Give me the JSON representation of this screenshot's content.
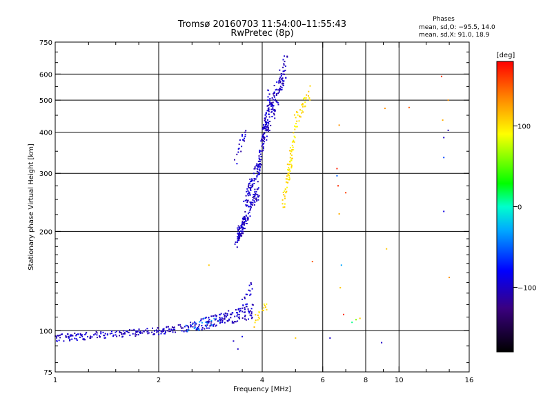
{
  "chart_data": {
    "type": "scatter",
    "title": "Tromsø 20160703 11:54:00–11:55:43",
    "subtitle": "RwPretec (8p)",
    "xlabel": "Frequency [MHz]",
    "ylabel": "Stationary phase Virtual Height [km]",
    "xscale": "log2",
    "yscale": "log",
    "xlim": [
      1,
      16
    ],
    "ylim": [
      75,
      750
    ],
    "x_ticks": [
      1,
      2,
      4,
      6,
      8,
      10,
      16
    ],
    "x_tick_labels": [
      "1",
      "2",
      "4",
      "6",
      "8",
      "10",
      "16"
    ],
    "x_minor_ticks": [
      1.25,
      1.5,
      1.75,
      2.5,
      3,
      3.5,
      5,
      7,
      9,
      12,
      14
    ],
    "y_ticks": [
      75,
      100,
      200,
      300,
      400,
      500,
      600,
      750
    ],
    "y_tick_labels": [
      "75",
      "100",
      "200",
      "300",
      "400",
      "500",
      "600",
      "750"
    ],
    "y_minor_ticks": [
      80,
      90,
      110,
      120,
      130,
      140,
      150,
      160,
      170,
      180,
      190,
      225,
      250,
      275,
      350,
      450,
      550,
      650,
      700
    ],
    "grid": true,
    "phase_stats": {
      "heading": "Phases",
      "line_o": "mean, sd,O: −95.5, 14.0",
      "line_x": "mean, sd,X:  91.0, 18.9"
    },
    "colorbar": {
      "label": "[deg]",
      "range": [
        -180,
        180
      ],
      "ticks": [
        100,
        0,
        -100
      ],
      "tick_labels": [
        "100",
        "0",
        "−100"
      ]
    },
    "series": [
      {
        "name": "E/low trace",
        "phase": -100,
        "segments": [
          {
            "x0": 1.0,
            "x1": 2.05,
            "y0": 95,
            "y1": 100,
            "n": 150,
            "jitter": 0.025
          },
          {
            "x0": 2.05,
            "x1": 2.6,
            "y0": 99,
            "y1": 104,
            "n": 55,
            "jitter": 0.03
          },
          {
            "x0": 2.6,
            "x1": 3.2,
            "y0": 104,
            "y1": 110,
            "n": 60,
            "jitter": 0.04
          },
          {
            "x0": 3.0,
            "x1": 3.8,
            "y0": 108,
            "y1": 115,
            "n": 70,
            "jitter": 0.05
          },
          {
            "x0": 3.4,
            "x1": 3.75,
            "y0": 110,
            "y1": 140,
            "n": 25,
            "jitter": 0.06
          }
        ]
      },
      {
        "name": "E/low cyan points",
        "phase": -40,
        "segments": [
          {
            "x0": 2.4,
            "x1": 3.0,
            "y0": 100,
            "y1": 110,
            "n": 20,
            "jitter": 0.04
          }
        ]
      },
      {
        "name": "O-mode F trace",
        "phase": -100,
        "segments": [
          {
            "x0": 3.35,
            "x1": 3.55,
            "y0": 185,
            "y1": 215,
            "n": 45,
            "jitter": 0.04
          },
          {
            "x0": 3.4,
            "x1": 3.9,
            "y0": 195,
            "y1": 265,
            "n": 90,
            "jitter": 0.05
          },
          {
            "x0": 3.55,
            "x1": 3.95,
            "y0": 240,
            "y1": 330,
            "n": 70,
            "jitter": 0.05
          },
          {
            "x0": 3.35,
            "x1": 3.6,
            "y0": 330,
            "y1": 420,
            "n": 20,
            "jitter": 0.05
          },
          {
            "x0": 3.9,
            "x1": 4.2,
            "y0": 300,
            "y1": 520,
            "n": 80,
            "jitter": 0.07
          },
          {
            "x0": 4.0,
            "x1": 4.7,
            "y0": 380,
            "y1": 640,
            "n": 150,
            "jitter": 0.09
          }
        ]
      },
      {
        "name": "X-mode F trace",
        "phase": 100,
        "segments": [
          {
            "x0": 4.6,
            "x1": 4.85,
            "y0": 240,
            "y1": 320,
            "n": 40,
            "jitter": 0.05
          },
          {
            "x0": 4.75,
            "x1": 5.0,
            "y0": 300,
            "y1": 400,
            "n": 30,
            "jitter": 0.05
          },
          {
            "x0": 5.0,
            "x1": 5.5,
            "y0": 430,
            "y1": 530,
            "n": 35,
            "jitter": 0.05
          },
          {
            "x0": 3.75,
            "x1": 4.15,
            "y0": 105,
            "y1": 122,
            "n": 18,
            "jitter": 0.04
          }
        ]
      },
      {
        "name": "Scattered points",
        "points": [
          [
            2.8,
            158,
            110
          ],
          [
            3.3,
            93,
            -100
          ],
          [
            3.4,
            88,
            -100
          ],
          [
            3.5,
            96,
            -90
          ],
          [
            5.0,
            95,
            110
          ],
          [
            5.6,
            162,
            150
          ],
          [
            6.3,
            95,
            -100
          ],
          [
            6.6,
            310,
            170
          ],
          [
            6.6,
            295,
            -50
          ],
          [
            6.65,
            275,
            165
          ],
          [
            6.7,
            420,
            130
          ],
          [
            6.7,
            226,
            120
          ],
          [
            6.8,
            158,
            -30
          ],
          [
            6.75,
            135,
            110
          ],
          [
            6.9,
            112,
            165
          ],
          [
            7.0,
            262,
            160
          ],
          [
            7.3,
            106,
            10
          ],
          [
            7.5,
            108,
            60
          ],
          [
            7.7,
            109,
            110
          ],
          [
            8.9,
            92,
            -100
          ],
          [
            9.1,
            472,
            130
          ],
          [
            9.2,
            177,
            110
          ],
          [
            10.7,
            475,
            150
          ],
          [
            13.3,
            590,
            160
          ],
          [
            13.4,
            435,
            120
          ],
          [
            13.5,
            385,
            -100
          ],
          [
            13.5,
            335,
            -60
          ],
          [
            13.5,
            230,
            -90
          ],
          [
            13.9,
            500,
            130
          ],
          [
            13.9,
            405,
            -110
          ],
          [
            14.0,
            145,
            130
          ]
        ]
      }
    ]
  }
}
